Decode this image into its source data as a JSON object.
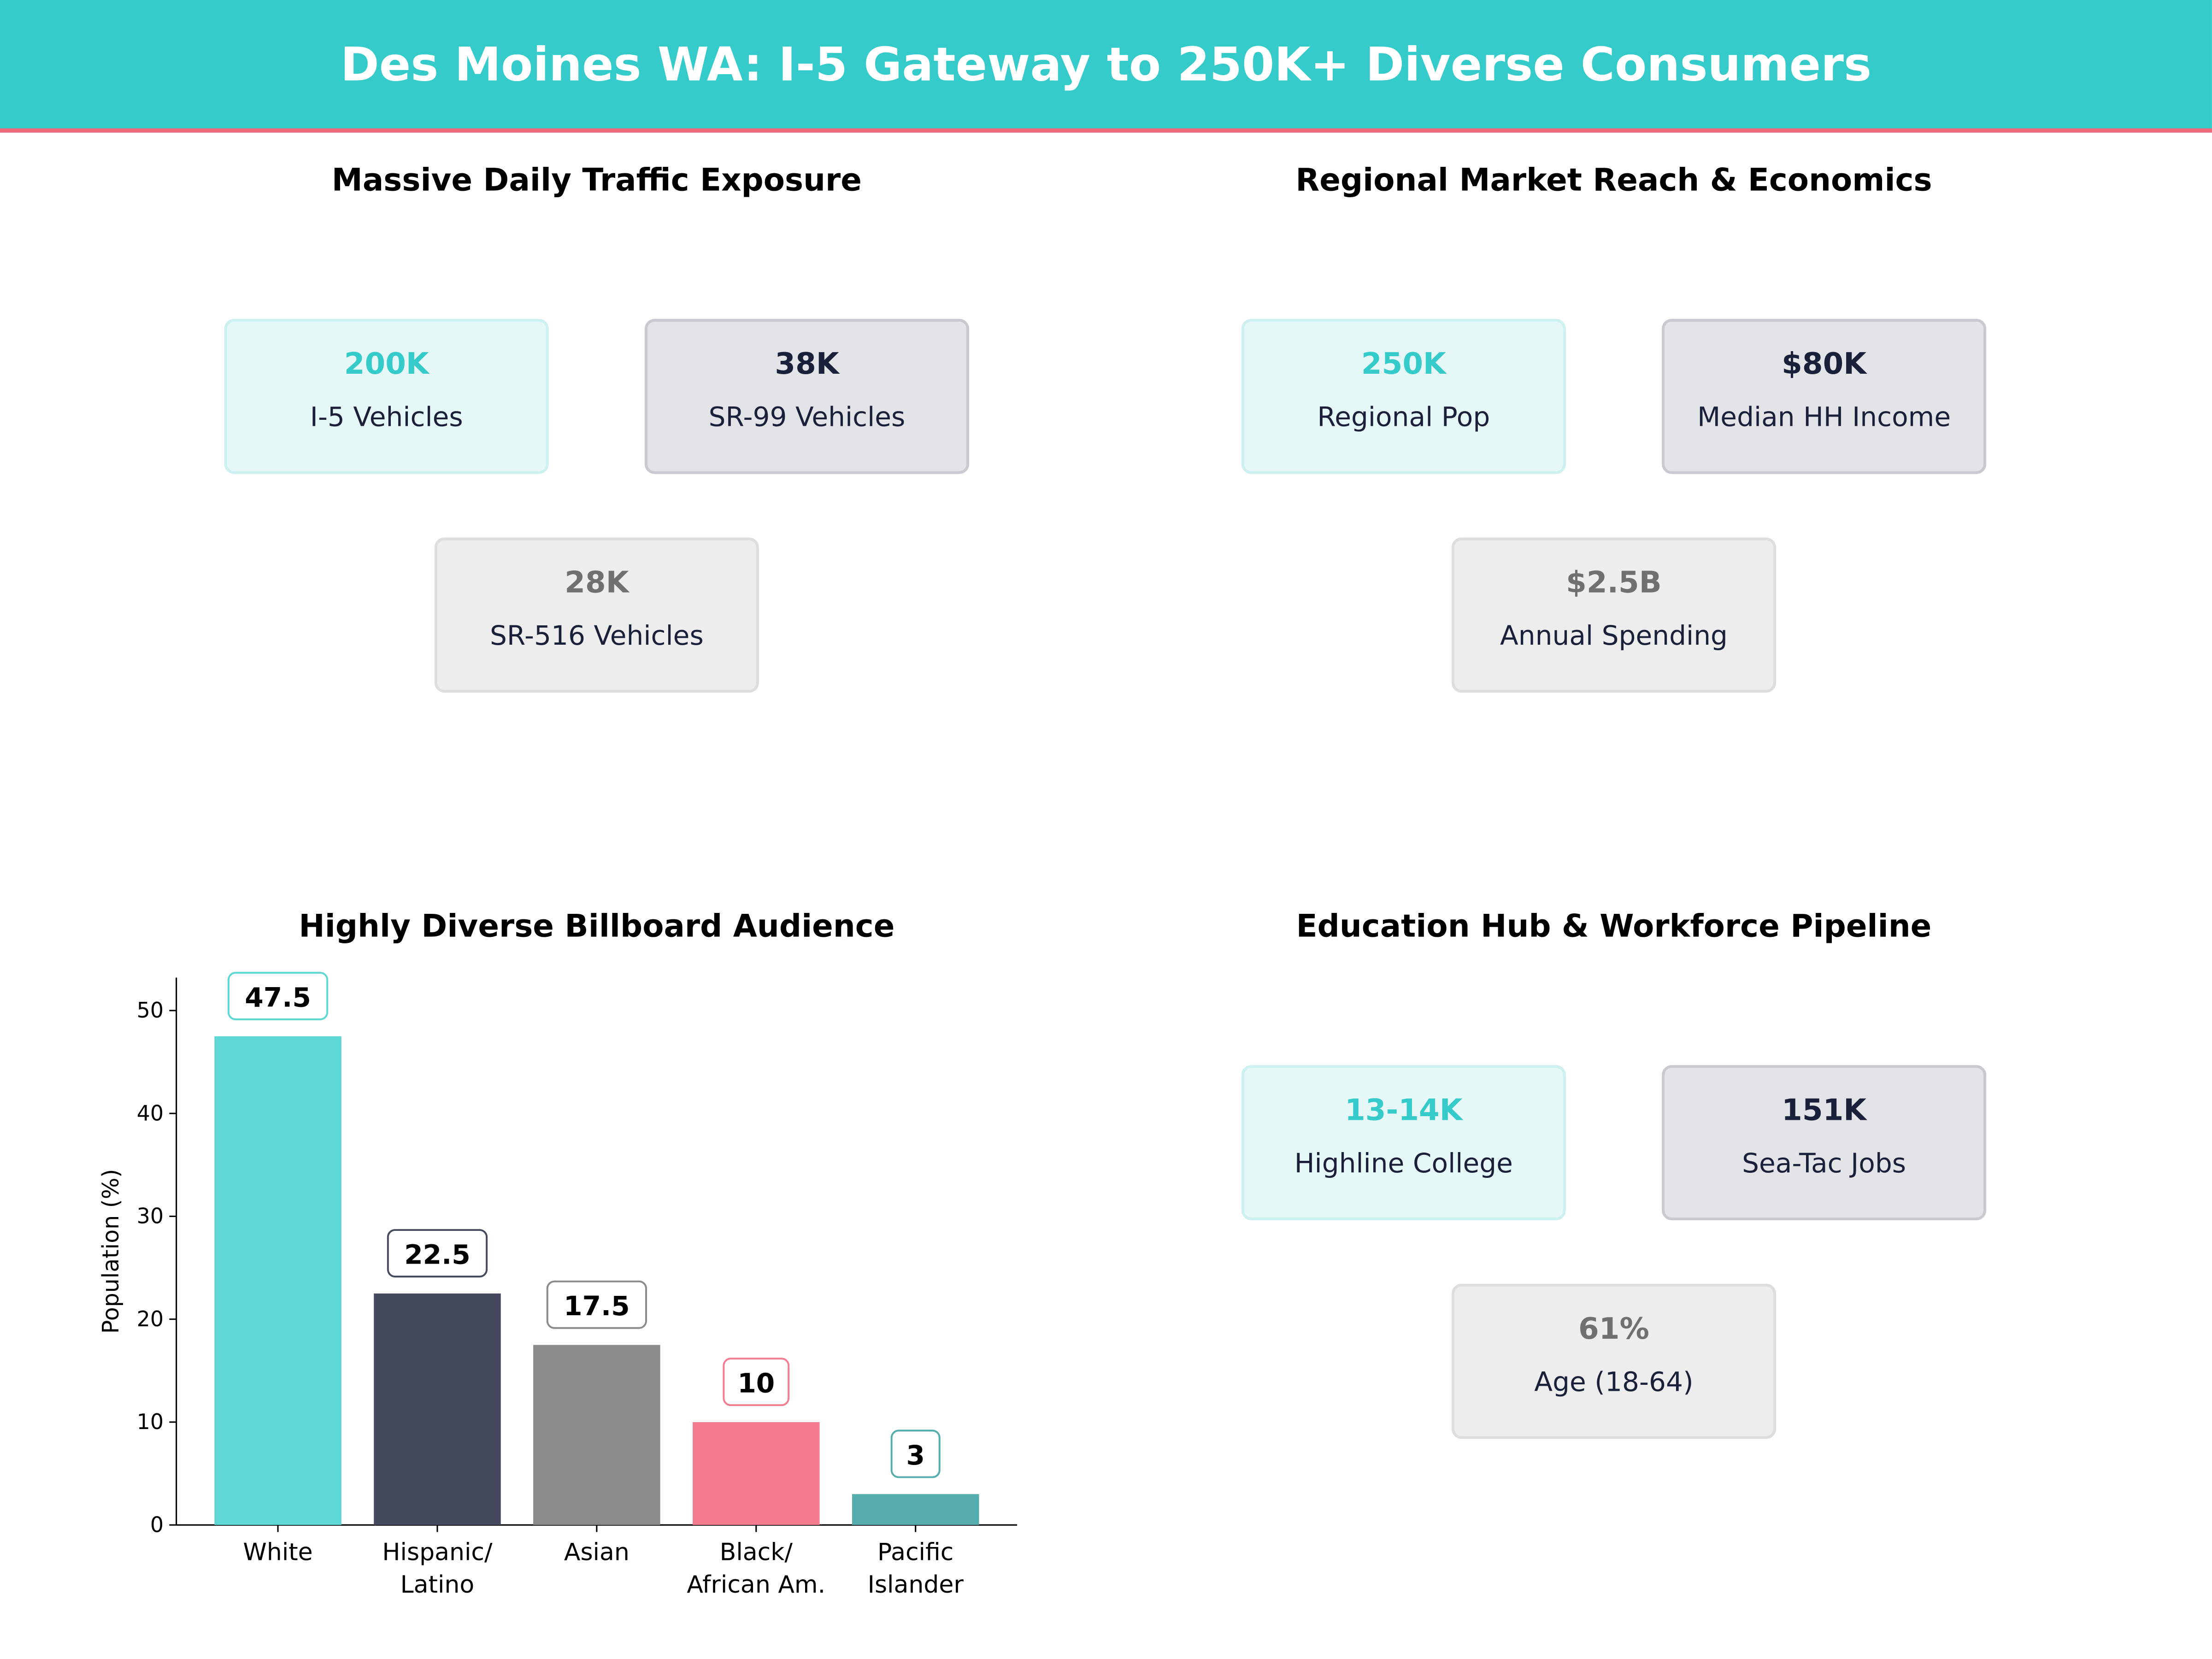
{
  "title": "Des Moines WA: I-5 Gateway to 250K+ Diverse Consumers",
  "colors": {
    "header": "#36CBCB",
    "accent_line": "#F0687A"
  },
  "panels": [
    {
      "title": "Massive Daily Traffic Exposure",
      "cards": [
        {
          "value": "200K",
          "label": "I-5  Vehicles"
        },
        {
          "value": "38K",
          "label": "SR-99  Vehicles"
        },
        {
          "value": "28K",
          "label": "SR-516  Vehicles"
        }
      ]
    },
    {
      "title": "Regional Market Reach & Economics",
      "cards": [
        {
          "value": "250K",
          "label": "Regional Pop"
        },
        {
          "value": "$80K",
          "label": "Median HH Income"
        },
        {
          "value": "$2.5B",
          "label": "Annual Spending"
        }
      ]
    },
    {
      "title": "Highly Diverse Billboard Audience"
    },
    {
      "title": "Education Hub & Workforce Pipeline",
      "cards": [
        {
          "value": "13-14K",
          "label": "Highline College"
        },
        {
          "value": "151K",
          "label": "Sea-Tac Jobs"
        },
        {
          "value": "61%",
          "label": "Age (18-64)"
        }
      ]
    }
  ],
  "chart_data": {
    "type": "bar",
    "title": "Highly Diverse Billboard Audience",
    "categories": [
      "White",
      "Hispanic/\nLatino",
      "Asian",
      "Black/\nAfrican Am.",
      "Pacific\nIslander"
    ],
    "values": [
      47.5,
      22.5,
      17.5,
      10,
      3
    ],
    "value_labels": [
      "47.5",
      "22.5",
      "17.5",
      "10",
      "3"
    ],
    "colors": [
      "#5DD8D5",
      "#464A5E",
      "#8B8B8B",
      "#F57D92",
      "#56ADAD"
    ],
    "label_border_colors": [
      "#5DD8D5",
      "#464A5E",
      "#8B8B8B",
      "#F57D92",
      "#56ADAD"
    ],
    "xlabel": "",
    "ylabel": "Population (%)",
    "ylim": [
      0,
      53.2
    ],
    "yticks": [
      0,
      10,
      20,
      30,
      40,
      50
    ],
    "grid": false
  }
}
